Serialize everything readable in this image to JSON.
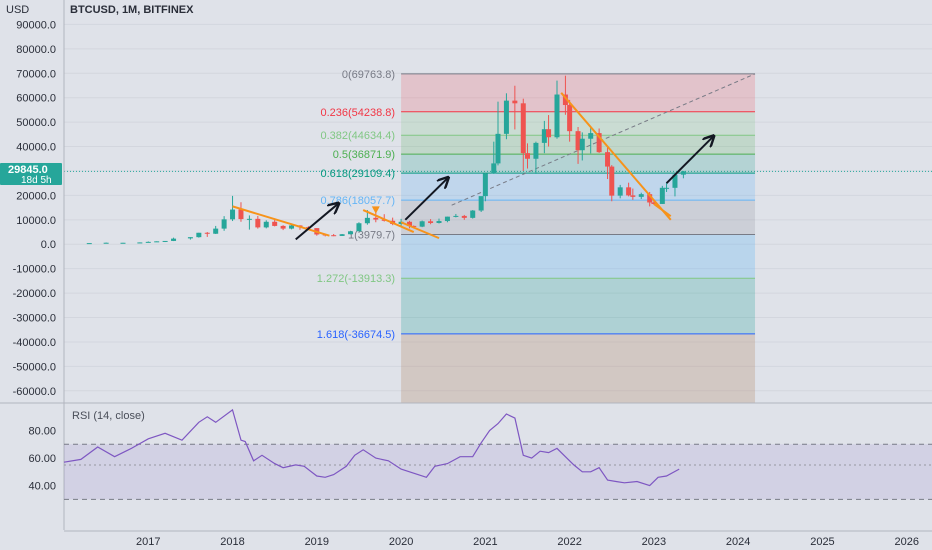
{
  "header": {
    "currency": "USD",
    "symbol_title": "BTCUSD, 1M, BITFINEX"
  },
  "price_badge": {
    "price": "29845.0",
    "countdown": "18d 5h",
    "color": "#26a69a"
  },
  "colors": {
    "background": "#dfe2e9",
    "up": "#26a69a",
    "down": "#ef5350",
    "trendline": "#f7931a",
    "arrow": "#131722",
    "rsi_line": "#7e57c2",
    "rsi_band": "rgba(126,87,194,0.12)"
  },
  "chart_data": [
    {
      "type": "candlestick",
      "title": "BTCUSD, 1M, BITFINEX",
      "ylabel": "USD",
      "ylim": [
        -65000,
        100000
      ],
      "xlim": [
        2016.0,
        2026.3
      ],
      "x_ticks": [
        "2017",
        "2018",
        "2019",
        "2020",
        "2021",
        "2022",
        "2023",
        "2024",
        "2025",
        "2026"
      ],
      "y_ticks": [
        "90000.0",
        "80000.0",
        "70000.0",
        "60000.0",
        "50000.0",
        "40000.0",
        "30000.0",
        "20000.0",
        "10000.0",
        "0.0",
        "-10000.0",
        "-20000.0",
        "-30000.0",
        "-40000.0",
        "-50000.0",
        "-60000.0"
      ],
      "current_price": 29845.0,
      "candles": [
        {
          "t": 2016.3,
          "o": 450,
          "h": 470,
          "l": 430,
          "c": 460
        },
        {
          "t": 2016.5,
          "o": 530,
          "h": 700,
          "l": 520,
          "c": 620
        },
        {
          "t": 2016.7,
          "o": 600,
          "h": 640,
          "l": 580,
          "c": 610
        },
        {
          "t": 2016.9,
          "o": 700,
          "h": 760,
          "l": 690,
          "c": 740
        },
        {
          "t": 2017.0,
          "o": 960,
          "h": 1150,
          "l": 750,
          "c": 970
        },
        {
          "t": 2017.1,
          "o": 1000,
          "h": 1200,
          "l": 950,
          "c": 1190
        },
        {
          "t": 2017.2,
          "o": 1080,
          "h": 1300,
          "l": 900,
          "c": 1350
        },
        {
          "t": 2017.3,
          "o": 1350,
          "h": 2700,
          "l": 1300,
          "c": 2300
        },
        {
          "t": 2017.5,
          "o": 2400,
          "h": 2900,
          "l": 1900,
          "c": 2900
        },
        {
          "t": 2017.6,
          "o": 2900,
          "h": 4700,
          "l": 2700,
          "c": 4700
        },
        {
          "t": 2017.7,
          "o": 4700,
          "h": 5000,
          "l": 3000,
          "c": 4300
        },
        {
          "t": 2017.8,
          "o": 4300,
          "h": 7500,
          "l": 4200,
          "c": 6400
        },
        {
          "t": 2017.9,
          "o": 6400,
          "h": 11500,
          "l": 5500,
          "c": 10200
        },
        {
          "t": 2018.0,
          "o": 10200,
          "h": 19800,
          "l": 9500,
          "c": 14200
        },
        {
          "t": 2018.1,
          "o": 14200,
          "h": 17200,
          "l": 9200,
          "c": 10300
        },
        {
          "t": 2018.2,
          "o": 10300,
          "h": 11800,
          "l": 6000,
          "c": 10400
        },
        {
          "t": 2018.3,
          "o": 10400,
          "h": 11600,
          "l": 6400,
          "c": 6900
        },
        {
          "t": 2018.4,
          "o": 6900,
          "h": 9800,
          "l": 6500,
          "c": 9200
        },
        {
          "t": 2018.5,
          "o": 9200,
          "h": 10000,
          "l": 7300,
          "c": 7500
        },
        {
          "t": 2018.6,
          "o": 7500,
          "h": 7800,
          "l": 5800,
          "c": 6400
        },
        {
          "t": 2018.7,
          "o": 6400,
          "h": 8500,
          "l": 6100,
          "c": 7700
        },
        {
          "t": 2018.8,
          "o": 7700,
          "h": 7800,
          "l": 5900,
          "c": 7000
        },
        {
          "t": 2018.9,
          "o": 7000,
          "h": 7400,
          "l": 6200,
          "c": 6600
        },
        {
          "t": 2019.0,
          "o": 6600,
          "h": 6600,
          "l": 3500,
          "c": 4000
        },
        {
          "t": 2019.1,
          "o": 4000,
          "h": 4300,
          "l": 3200,
          "c": 3700
        },
        {
          "t": 2019.2,
          "o": 3700,
          "h": 4200,
          "l": 3300,
          "c": 3400
        },
        {
          "t": 2019.3,
          "o": 3400,
          "h": 4200,
          "l": 3400,
          "c": 4100
        },
        {
          "t": 2019.4,
          "o": 4100,
          "h": 5500,
          "l": 4000,
          "c": 5300
        },
        {
          "t": 2019.5,
          "o": 5300,
          "h": 9000,
          "l": 5300,
          "c": 8600
        },
        {
          "t": 2019.6,
          "o": 8600,
          "h": 14000,
          "l": 8000,
          "c": 10800
        },
        {
          "t": 2019.7,
          "o": 10800,
          "h": 13000,
          "l": 9000,
          "c": 10100
        },
        {
          "t": 2019.8,
          "o": 10100,
          "h": 12300,
          "l": 9300,
          "c": 9600
        },
        {
          "t": 2019.9,
          "o": 9600,
          "h": 10900,
          "l": 7800,
          "c": 8300
        },
        {
          "t": 2020.0,
          "o": 8300,
          "h": 10400,
          "l": 7300,
          "c": 9200
        },
        {
          "t": 2020.1,
          "o": 9200,
          "h": 9600,
          "l": 6500,
          "c": 7500
        },
        {
          "t": 2020.15,
          "o": 7500,
          "h": 7700,
          "l": 6500,
          "c": 7200
        },
        {
          "t": 2020.25,
          "o": 7200,
          "h": 9700,
          "l": 7000,
          "c": 9400
        },
        {
          "t": 2020.35,
          "o": 9400,
          "h": 10300,
          "l": 8200,
          "c": 8700
        },
        {
          "t": 2020.45,
          "o": 8700,
          "h": 10500,
          "l": 8500,
          "c": 9500
        },
        {
          "t": 2020.55,
          "o": 9500,
          "h": 11300,
          "l": 9000,
          "c": 11300
        },
        {
          "t": 2020.65,
          "o": 11300,
          "h": 12400,
          "l": 11000,
          "c": 11600
        },
        {
          "t": 2020.75,
          "o": 11600,
          "h": 12000,
          "l": 10000,
          "c": 10800
        },
        {
          "t": 2020.85,
          "o": 10800,
          "h": 14000,
          "l": 10500,
          "c": 13800
        },
        {
          "t": 2020.95,
          "o": 13800,
          "h": 19400,
          "l": 13200,
          "c": 19700
        },
        {
          "t": 2021.0,
          "o": 19700,
          "h": 29300,
          "l": 17600,
          "c": 29000
        },
        {
          "t": 2021.1,
          "o": 29000,
          "h": 42000,
          "l": 28800,
          "c": 33100
        },
        {
          "t": 2021.15,
          "o": 33100,
          "h": 58400,
          "l": 32300,
          "c": 45200
        },
        {
          "t": 2021.25,
          "o": 45200,
          "h": 61800,
          "l": 43000,
          "c": 58800
        },
        {
          "t": 2021.35,
          "o": 58800,
          "h": 64900,
          "l": 47000,
          "c": 57700
        },
        {
          "t": 2021.45,
          "o": 57700,
          "h": 59600,
          "l": 30000,
          "c": 37300
        },
        {
          "t": 2021.5,
          "o": 37300,
          "h": 41300,
          "l": 31000,
          "c": 35000
        },
        {
          "t": 2021.6,
          "o": 35000,
          "h": 42000,
          "l": 28800,
          "c": 41500
        },
        {
          "t": 2021.7,
          "o": 41500,
          "h": 50500,
          "l": 37300,
          "c": 47100
        },
        {
          "t": 2021.75,
          "o": 47100,
          "h": 52900,
          "l": 40000,
          "c": 43800
        },
        {
          "t": 2021.85,
          "o": 43800,
          "h": 67000,
          "l": 43200,
          "c": 61300
        },
        {
          "t": 2021.95,
          "o": 61300,
          "h": 69000,
          "l": 53000,
          "c": 57000
        },
        {
          "t": 2022.0,
          "o": 57000,
          "h": 59100,
          "l": 42000,
          "c": 46300
        },
        {
          "t": 2022.1,
          "o": 46300,
          "h": 48000,
          "l": 32900,
          "c": 38500
        },
        {
          "t": 2022.15,
          "o": 38500,
          "h": 45800,
          "l": 34300,
          "c": 43200
        },
        {
          "t": 2022.25,
          "o": 43200,
          "h": 48200,
          "l": 37200,
          "c": 45500
        },
        {
          "t": 2022.35,
          "o": 45500,
          "h": 47400,
          "l": 37400,
          "c": 37700
        },
        {
          "t": 2022.45,
          "o": 37700,
          "h": 40000,
          "l": 26700,
          "c": 31800
        },
        {
          "t": 2022.5,
          "o": 31800,
          "h": 32400,
          "l": 17600,
          "c": 19900
        },
        {
          "t": 2022.6,
          "o": 19900,
          "h": 24300,
          "l": 18800,
          "c": 23300
        },
        {
          "t": 2022.7,
          "o": 23300,
          "h": 25200,
          "l": 19600,
          "c": 20000
        },
        {
          "t": 2022.75,
          "o": 20000,
          "h": 22800,
          "l": 18200,
          "c": 19400
        },
        {
          "t": 2022.85,
          "o": 19400,
          "h": 21100,
          "l": 18500,
          "c": 20500
        },
        {
          "t": 2022.95,
          "o": 20500,
          "h": 21400,
          "l": 15500,
          "c": 17100
        },
        {
          "t": 2023.0,
          "o": 17100,
          "h": 18400,
          "l": 16200,
          "c": 16500
        },
        {
          "t": 2023.1,
          "o": 16500,
          "h": 23900,
          "l": 16500,
          "c": 23100
        },
        {
          "t": 2023.15,
          "o": 23100,
          "h": 25300,
          "l": 21400,
          "c": 23100
        },
        {
          "t": 2023.25,
          "o": 23100,
          "h": 29200,
          "l": 19600,
          "c": 28500
        },
        {
          "t": 2023.35,
          "o": 28500,
          "h": 30000,
          "l": 27000,
          "c": 29845
        }
      ],
      "fib_retracement": {
        "x_start": 2020.0,
        "x_end": 2024.2,
        "levels": [
          {
            "ratio": "0",
            "value": 69763.8,
            "label": "0(69763.8)",
            "color": "#787b86"
          },
          {
            "ratio": "0.236",
            "value": 54238.8,
            "label": "0.236(54238.8)",
            "color": "#f23645"
          },
          {
            "ratio": "0.382",
            "value": 44634.4,
            "label": "0.382(44634.4)",
            "color": "#81c784"
          },
          {
            "ratio": "0.5",
            "value": 36871.9,
            "label": "0.5(36871.9)",
            "color": "#4caf50"
          },
          {
            "ratio": "0.618",
            "value": 29109.4,
            "label": "0.618(29109.4)",
            "color": "#089981"
          },
          {
            "ratio": "0.786",
            "value": 18057.7,
            "label": "0.786(18057.7)",
            "color": "#64b5f6"
          },
          {
            "ratio": "1",
            "value": 3979.7,
            "label": "1(3979.7)",
            "color": "#787b86"
          },
          {
            "ratio": "1.272",
            "value": -13913.3,
            "label": "1.272(-13913.3)",
            "color": "#81c784"
          },
          {
            "ratio": "1.618",
            "value": -36674.5,
            "label": "1.618(-36674.5)",
            "color": "#2962ff"
          }
        ],
        "bottom_value": -65000
      }
    },
    {
      "type": "line",
      "title": "RSI (14, close)",
      "ylim": [
        15,
        100
      ],
      "y_ticks": [
        "80.00",
        "60.00",
        "40.00"
      ],
      "bands": [
        70,
        30
      ],
      "midline": 55,
      "series": [
        {
          "x": [
            2016.0,
            2016.2,
            2016.4,
            2016.6,
            2016.8,
            2017.0,
            2017.2,
            2017.4,
            2017.6,
            2017.7,
            2017.8,
            2018.0,
            2018.1,
            2018.15,
            2018.25,
            2018.35,
            2018.5,
            2018.6,
            2018.75,
            2018.85,
            2019.0,
            2019.1,
            2019.2,
            2019.35,
            2019.45,
            2019.55,
            2019.7,
            2019.85,
            2020.0,
            2020.15,
            2020.3,
            2020.4,
            2020.55,
            2020.7,
            2020.85,
            2020.95,
            2021.05,
            2021.15,
            2021.25,
            2021.35,
            2021.45,
            2021.55,
            2021.65,
            2021.75,
            2021.85,
            2021.95,
            2022.05,
            2022.15,
            2022.25,
            2022.35,
            2022.45,
            2022.55,
            2022.65,
            2022.8,
            2022.95,
            2023.05,
            2023.15,
            2023.3
          ],
          "values": [
            57,
            59,
            68,
            61,
            67,
            74,
            78,
            73,
            86,
            90,
            86,
            95,
            73,
            72,
            58,
            62,
            56,
            53,
            55,
            54,
            47,
            46,
            48,
            54,
            62,
            66,
            60,
            58,
            52,
            49,
            46,
            54,
            56,
            61,
            61,
            71,
            80,
            85,
            92,
            89,
            62,
            60,
            65,
            64,
            67,
            61,
            55,
            50,
            50,
            53,
            44,
            43,
            42,
            43,
            40,
            46,
            47,
            52
          ]
        }
      ]
    }
  ],
  "annotations": {
    "trendlines": [
      {
        "x1": 2018.0,
        "y1": 15500,
        "x2": 2019.15,
        "y2": 3500
      },
      {
        "x1": 2019.55,
        "y1": 14000,
        "x2": 2020.15,
        "y2": 5000
      },
      {
        "x1": 2020.0,
        "y1": 9000,
        "x2": 2020.45,
        "y2": 2500
      },
      {
        "x1": 2021.9,
        "y1": 62000,
        "x2": 2023.2,
        "y2": 10000
      },
      {
        "x1": 2023.0,
        "y1": 16500,
        "x2": 2023.2,
        "y2": 11500
      }
    ],
    "arrows": [
      {
        "x1": 2018.75,
        "y1": 2000,
        "x2": 2019.25,
        "y2": 16500
      },
      {
        "x1": 2020.05,
        "y1": 10000,
        "x2": 2020.55,
        "y2": 27000
      },
      {
        "x1": 2023.15,
        "y1": 25000,
        "x2": 2023.7,
        "y2": 44000
      },
      {
        "x1": 2020.6,
        "y1": 16000,
        "x2": 2024.0,
        "y2": 70000
      }
    ]
  }
}
